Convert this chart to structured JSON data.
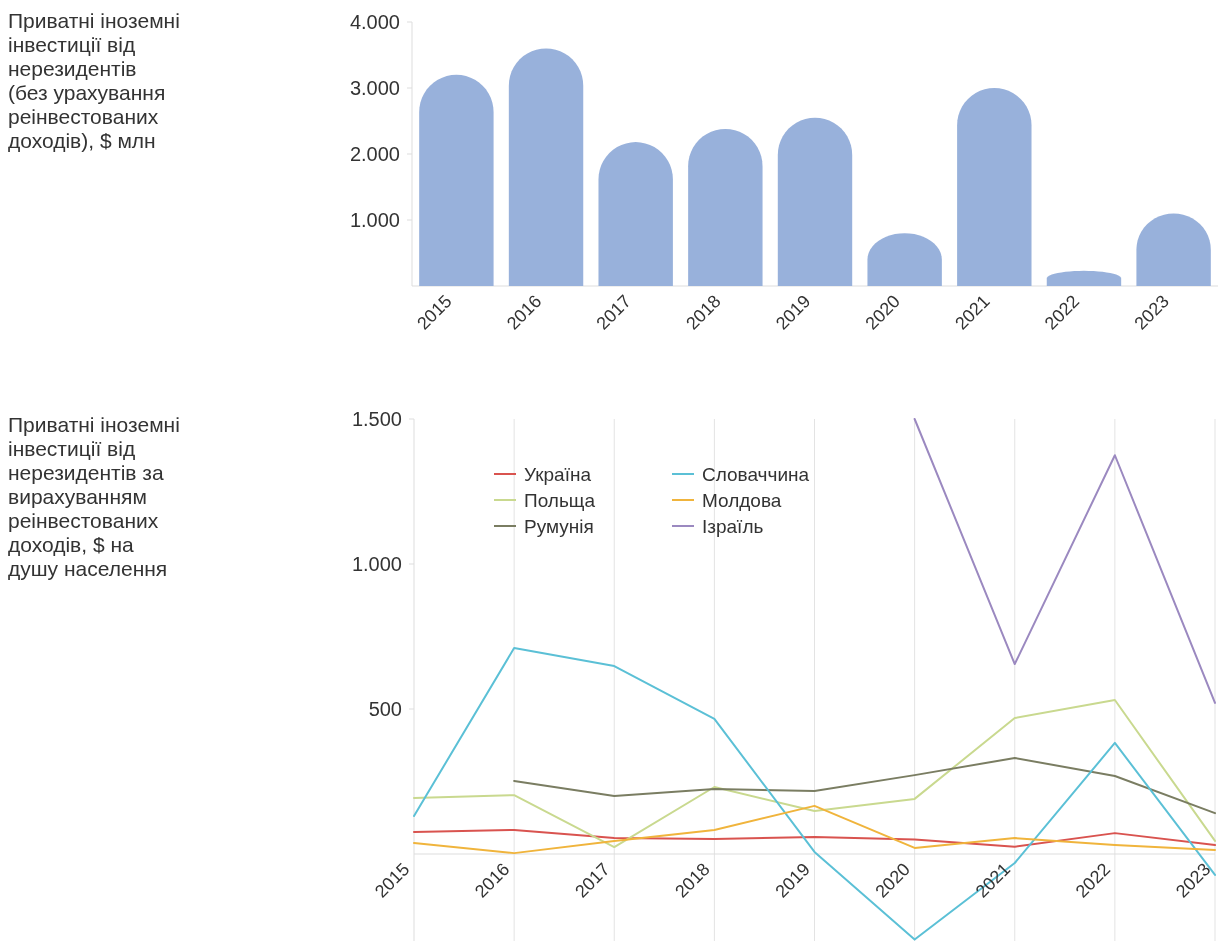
{
  "chart_data": [
    {
      "type": "bar",
      "ylabel": "Приватні іноземні інвестиції від нерезидентів (без урахування реінвестованих доходів), $ млн",
      "categories": [
        "2015",
        "2016",
        "2017",
        "2018",
        "2019",
        "2020",
        "2021",
        "2022",
        "2023"
      ],
      "values": [
        3200,
        3600,
        2180,
        2380,
        2550,
        800,
        3000,
        230,
        1100
      ],
      "color": "#98b1db",
      "ylim": [
        0,
        4000
      ],
      "yticks": [
        {
          "value": 1000,
          "label": "1.000"
        },
        {
          "value": 2000,
          "label": "2.000"
        },
        {
          "value": 3000,
          "label": "3.000"
        },
        {
          "value": 4000,
          "label": "4.000"
        }
      ]
    },
    {
      "type": "line",
      "ylabel": "Приватні іноземні інвестиції від нерезидентів за вирахуванням реінвестованих доходів, $ на душу населення",
      "categories": [
        "2015",
        "2016",
        "2017",
        "2018",
        "2019",
        "2020",
        "2021",
        "2022",
        "2023"
      ],
      "ylim": [
        -300,
        1500
      ],
      "yticks": [
        500,
        {
          "value": 1000,
          "label": "1.000"
        },
        {
          "value": 1500,
          "label": "1.500"
        }
      ],
      "grid": "x",
      "legend": "top left",
      "series": [
        {
          "name": "Україна",
          "color": "#d9534f",
          "values": [
            76,
            83,
            55,
            52,
            59,
            50,
            25,
            72,
            31
          ]
        },
        {
          "name": "Польща",
          "color": "#c9d98f",
          "values": [
            193,
            203,
            24,
            231,
            148,
            190,
            469,
            531,
            45
          ]
        },
        {
          "name": "Румунія",
          "color": "#7a7d62",
          "values": [
            null,
            252,
            200,
            224,
            217,
            272,
            331,
            269,
            141
          ]
        },
        {
          "name": "Словаччина",
          "color": "#5bc0d6",
          "values": [
            131,
            710,
            648,
            466,
            7,
            -295,
            -31,
            383,
            -72
          ]
        },
        {
          "name": "Молдова",
          "color": "#f0b43c",
          "values": [
            38,
            3,
            45,
            83,
            166,
            21,
            55,
            31,
            14
          ]
        },
        {
          "name": "Ізраїль",
          "color": "#9b89c0",
          "values": [
            null,
            null,
            null,
            null,
            null,
            1500,
            655,
            1375,
            521
          ]
        }
      ]
    }
  ]
}
